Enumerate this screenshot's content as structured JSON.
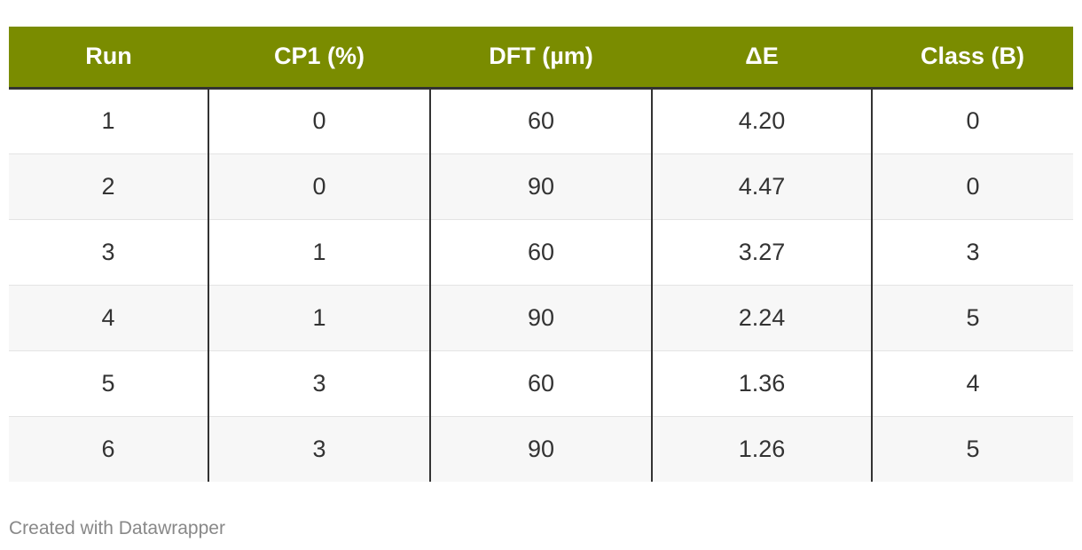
{
  "chart_data": {
    "type": "table",
    "columns": [
      "Run",
      "CP1 (%)",
      "DFT (µm)",
      "ΔE",
      "Class (B)"
    ],
    "rows": [
      [
        "1",
        "0",
        "60",
        "4.20",
        "0"
      ],
      [
        "2",
        "0",
        "90",
        "4.47",
        "0"
      ],
      [
        "3",
        "1",
        "60",
        "3.27",
        "3"
      ],
      [
        "4",
        "1",
        "90",
        "2.24",
        "5"
      ],
      [
        "5",
        "3",
        "60",
        "1.36",
        "4"
      ],
      [
        "6",
        "3",
        "90",
        "1.26",
        "5"
      ]
    ],
    "header_color": "#7a8c00",
    "stripe_color": "#f7f7f7"
  },
  "footer": {
    "credit": "Created with Datawrapper"
  }
}
